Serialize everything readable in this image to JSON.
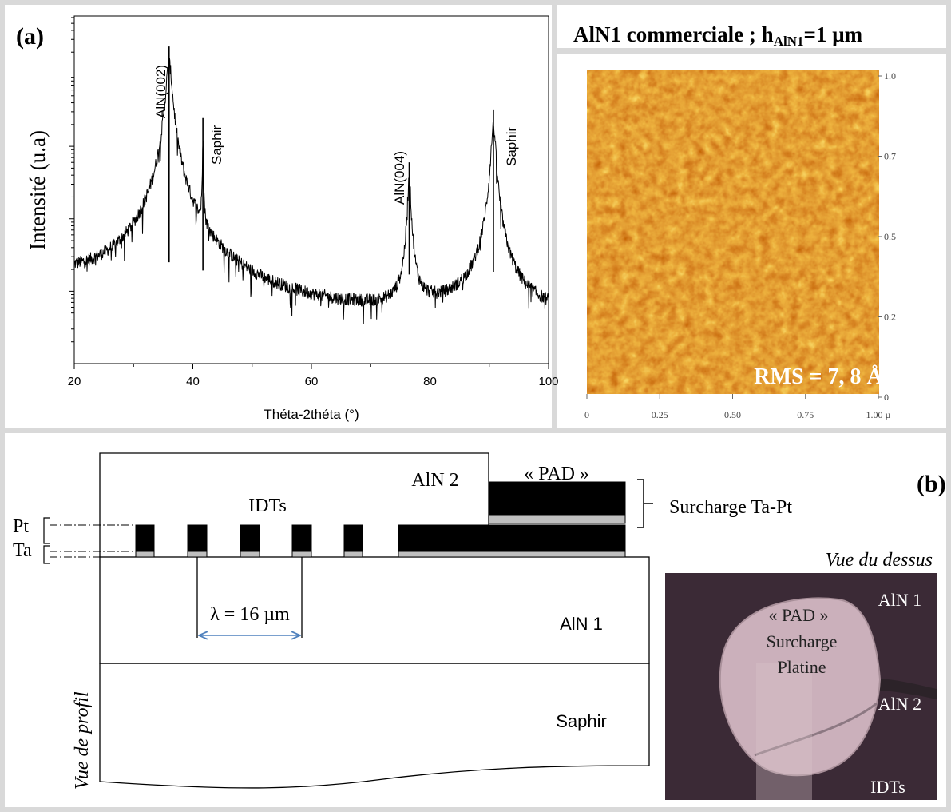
{
  "panel_a": {
    "label": "(a)",
    "xrd": {
      "type": "line",
      "xlabel": "Théta-2théta (°)",
      "ylabel": "Intensité (u.a)",
      "xlim": [
        20,
        100
      ],
      "xticks": [
        20,
        40,
        60,
        80,
        100
      ],
      "ylim": [
        0,
        4.8
      ],
      "yticks": [
        1,
        2,
        3,
        4
      ],
      "log_y": true,
      "background": {
        "x": [
          20,
          30,
          40,
          50,
          60,
          70,
          75,
          85,
          100
        ],
        "values": [
          1.1,
          0.95,
          0.7,
          0.62,
          0.6,
          0.6,
          0.62,
          0.7,
          0.62
        ]
      },
      "peaks": [
        {
          "label": "AlN(002)",
          "x": 36.0,
          "intensity": 4.38
        },
        {
          "label": "Saphir",
          "x": 41.7,
          "intensity": 3.39
        },
        {
          "label": "AlN(004)",
          "x": 76.5,
          "intensity": 2.78
        },
        {
          "label": "Saphir",
          "x": 90.7,
          "intensity": 3.5
        }
      ]
    },
    "afm": {
      "title": {
        "text": "AlN1 commerciale ; h",
        "sub": "AlN1",
        "rest": "=1 µm"
      },
      "rms": "RMS = 7, 8 Å",
      "x_tick_labels": [
        "0",
        "0.25",
        "0.50",
        "0.75",
        "1.00 µ"
      ],
      "y_tick_labels": [
        "1.0",
        "0.7",
        "0.5",
        "0.2",
        "0"
      ]
    }
  },
  "panel_b": {
    "label": "(b)",
    "profile": {
      "aln2": "AlN 2",
      "pad": "« PAD »",
      "idts": "IDTs",
      "overload": "Surcharge Ta-Pt",
      "pt": "Pt",
      "ta": "Ta",
      "lambda": "λ = 16 µm",
      "aln1": "AlN 1",
      "sapphire": "Saphir",
      "view": "Vue de profil"
    },
    "top_view": {
      "view": "Vue du dessus",
      "aln1": "AlN 1",
      "pad": "« PAD »",
      "overload_1": "Surcharge",
      "overload_2": "Platine",
      "aln2": "AlN 2",
      "idts": "IDTs"
    }
  }
}
